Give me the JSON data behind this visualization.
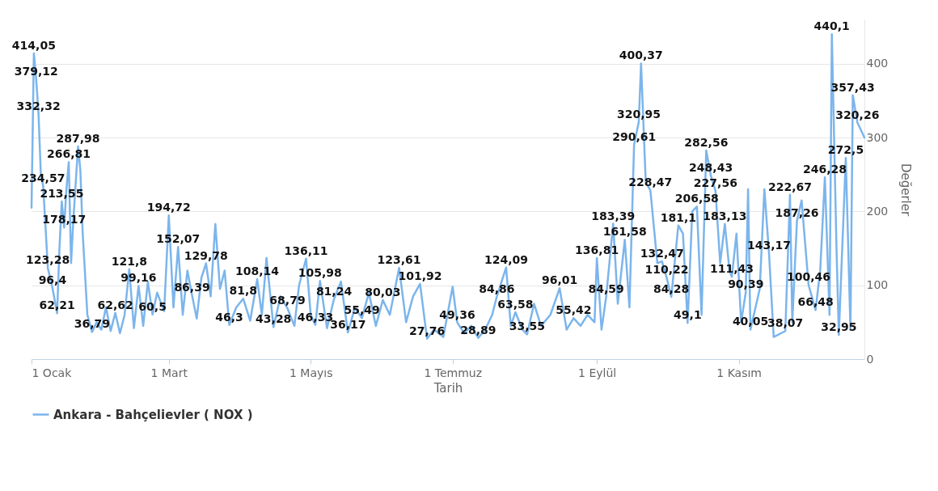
{
  "chart_data": {
    "type": "line",
    "xlabel": "Tarih",
    "ylabel": "Değerler",
    "legend": "bottom",
    "grid": "y",
    "marker": "none",
    "line_style": "solid",
    "xlim": [
      "--01-01",
      "--12-25"
    ],
    "xticks": [
      {
        "value": "--01-01",
        "label": "1 Ocak"
      },
      {
        "value": "--03-01",
        "label": "1 Mart"
      },
      {
        "value": "--05-01",
        "label": "1 Mayıs"
      },
      {
        "value": "--07-01",
        "label": "1 Temmuz"
      },
      {
        "value": "--09-01",
        "label": "1 Eylül"
      },
      {
        "value": "--11-01",
        "label": "1 Kasım"
      }
    ],
    "ylim": [
      0,
      460
    ],
    "yticks": [
      0,
      100,
      200,
      300,
      400
    ],
    "x": [
      "--01-01",
      "--01-02",
      "--01-03",
      "--01-04",
      "--01-05",
      "--01-06",
      "--01-07",
      "--01-08",
      "--01-09",
      "--01-10",
      "--01-12",
      "--01-13",
      "--01-14",
      "--01-15",
      "--01-16",
      "--01-17",
      "--01-18",
      "--01-19",
      "--01-21",
      "--01-22",
      "--01-23",
      "--01-25",
      "--01-27",
      "--01-29",
      "--01-31",
      "--02-02",
      "--02-04",
      "--02-06",
      "--02-08",
      "--02-10",
      "--02-12",
      "--02-14",
      "--02-16",
      "--02-18",
      "--02-20",
      "--02-22",
      "--02-24",
      "--02-27",
      "--03-01",
      "--03-03",
      "--03-05",
      "--03-07",
      "--03-09",
      "--03-11",
      "--03-13",
      "--03-15",
      "--03-17",
      "--03-19",
      "--03-21",
      "--03-23",
      "--03-25",
      "--03-27",
      "--03-30",
      "--04-02",
      "--04-05",
      "--04-08",
      "--04-10",
      "--04-12",
      "--04-15",
      "--04-18",
      "--04-21",
      "--04-24",
      "--04-26",
      "--04-29",
      "--05-01",
      "--05-03",
      "--05-05",
      "--05-08",
      "--05-11",
      "--05-14",
      "--05-17",
      "--05-20",
      "--05-23",
      "--05-26",
      "--05-29",
      "--06-01",
      "--06-04",
      "--06-08",
      "--06-11",
      "--06-14",
      "--06-17",
      "--06-20",
      "--06-23",
      "--06-27",
      "--07-01",
      "--07-03",
      "--07-06",
      "--07-09",
      "--07-12",
      "--07-15",
      "--07-18",
      "--07-20",
      "--07-24",
      "--07-26",
      "--07-28",
      "--07-31",
      "--08-02",
      "--08-05",
      "--08-08",
      "--08-12",
      "--08-16",
      "--08-19",
      "--08-22",
      "--08-25",
      "--08-28",
      "--08-31",
      "--09-01",
      "--09-03",
      "--09-05",
      "--09-08",
      "--09-10",
      "--09-13",
      "--09-15",
      "--09-17",
      "--09-19",
      "--09-20",
      "--09-22",
      "--09-24",
      "--09-27",
      "--09-29",
      "--10-01",
      "--10-03",
      "--10-06",
      "--10-08",
      "--10-10",
      "--10-12",
      "--10-14",
      "--10-16",
      "--10-18",
      "--10-20",
      "--10-22",
      "--10-24",
      "--10-26",
      "--10-28",
      "--10-29",
      "--10-31",
      "--11-02",
      "--11-04",
      "--11-05",
      "--11-06",
      "--11-10",
      "--11-12",
      "--11-14",
      "--11-16",
      "--11-21",
      "--11-22",
      "--11-23",
      "--11-24",
      "--11-26",
      "--11-28",
      "--12-01",
      "--12-04",
      "--12-06",
      "--12-08",
      "--12-10",
      "--12-11",
      "--12-13",
      "--12-14",
      "--12-17",
      "--12-19",
      "--12-20",
      "--12-22",
      "--12-25"
    ],
    "series": [
      {
        "name": "Ankara - Bahçelievler ( NOX )",
        "color": "#7cb5ec",
        "values": [
          205,
          414.05,
          379.12,
          332.32,
          250,
          234.57,
          180,
          123.28,
          110,
          96.4,
          62.21,
          150,
          213.55,
          178.17,
          230,
          266.81,
          130,
          190,
          287.98,
          255,
          170,
          60,
          36.79,
          50,
          40,
          70,
          38,
          62.62,
          35,
          60,
          121.8,
          42,
          99.16,
          45,
          105,
          60.5,
          90,
          65,
          194.72,
          70,
          152.07,
          60,
          120,
          86.39,
          55,
          110,
          129.78,
          85,
          183,
          95,
          120,
          46.3,
          70,
          81.8,
          52,
          108.14,
          60,
          137,
          43.28,
          85,
          68.79,
          45,
          100,
          136.11,
          60,
          46.33,
          105.98,
          42,
          81.24,
          105,
          36.17,
          70,
          55.49,
          90,
          45,
          80.03,
          60,
          123.61,
          50,
          85,
          101.92,
          27.76,
          40,
          30,
          98,
          49.36,
          35,
          45,
          28.89,
          40,
          60,
          84.86,
          124.09,
          45,
          63.58,
          40,
          33.55,
          75,
          45,
          60,
          96.01,
          40,
          55.42,
          45,
          60,
          50,
          136.81,
          40,
          84.59,
          183.39,
          75,
          161.58,
          70,
          290.61,
          320.95,
          400.37,
          240,
          228.47,
          130,
          132.47,
          110.22,
          84.28,
          181.1,
          170,
          49.1,
          200,
          206.58,
          60,
          282.56,
          248.43,
          227.56,
          130,
          183.13,
          120,
          111.43,
          170,
          50,
          90.39,
          230,
          40.05,
          95,
          230,
          143.17,
          30,
          38.07,
          130,
          222.67,
          50,
          187.26,
          215,
          100.46,
          66.48,
          120,
          246.28,
          60,
          440.1,
          150,
          32.95,
          272.5,
          40,
          357.43,
          320.26,
          300
        ],
        "value_labels": [
          null,
          "414,05",
          "379,12",
          "332,32",
          null,
          "234,57",
          null,
          "123,28",
          null,
          "96,4",
          "62,21",
          null,
          "213,55",
          "178,17",
          null,
          "266,81",
          null,
          null,
          "287,98",
          null,
          null,
          null,
          "36,79",
          null,
          null,
          null,
          null,
          "62,62",
          null,
          null,
          "121,8",
          null,
          "99,16",
          null,
          null,
          "60,5",
          null,
          null,
          "194,72",
          null,
          "152,07",
          null,
          null,
          "86,39",
          null,
          null,
          "129,78",
          null,
          null,
          null,
          null,
          "46,3",
          null,
          "81,8",
          null,
          "108,14",
          null,
          null,
          "43,28",
          null,
          "68,79",
          null,
          null,
          "136,11",
          null,
          "46,33",
          "105,98",
          null,
          "81,24",
          null,
          "36,17",
          null,
          "55,49",
          null,
          null,
          "80,03",
          null,
          "123,61",
          null,
          null,
          "101,92",
          "27,76",
          null,
          null,
          null,
          "49,36",
          null,
          null,
          "28,89",
          null,
          null,
          "84,86",
          "124,09",
          null,
          "63,58",
          null,
          "33,55",
          null,
          null,
          null,
          "96,01",
          null,
          "55,42",
          null,
          null,
          null,
          "136,81",
          null,
          "84,59",
          "183,39",
          null,
          "161,58",
          null,
          "290,61",
          "320,95",
          "400,37",
          null,
          "228,47",
          null,
          "132,47",
          "110,22",
          "84,28",
          "181,1",
          null,
          "49,1",
          null,
          "206,58",
          null,
          "282,56",
          "248,43",
          "227,56",
          null,
          "183,13",
          null,
          "111,43",
          null,
          null,
          "90,39",
          null,
          "40,05",
          null,
          null,
          "143,17",
          null,
          "38,07",
          null,
          "222,67",
          null,
          "187,26",
          null,
          "100,46",
          "66,48",
          null,
          "246,28",
          null,
          "440,1",
          null,
          "32,95",
          "272,5",
          null,
          "357,43",
          "320,26",
          null
        ]
      }
    ]
  }
}
